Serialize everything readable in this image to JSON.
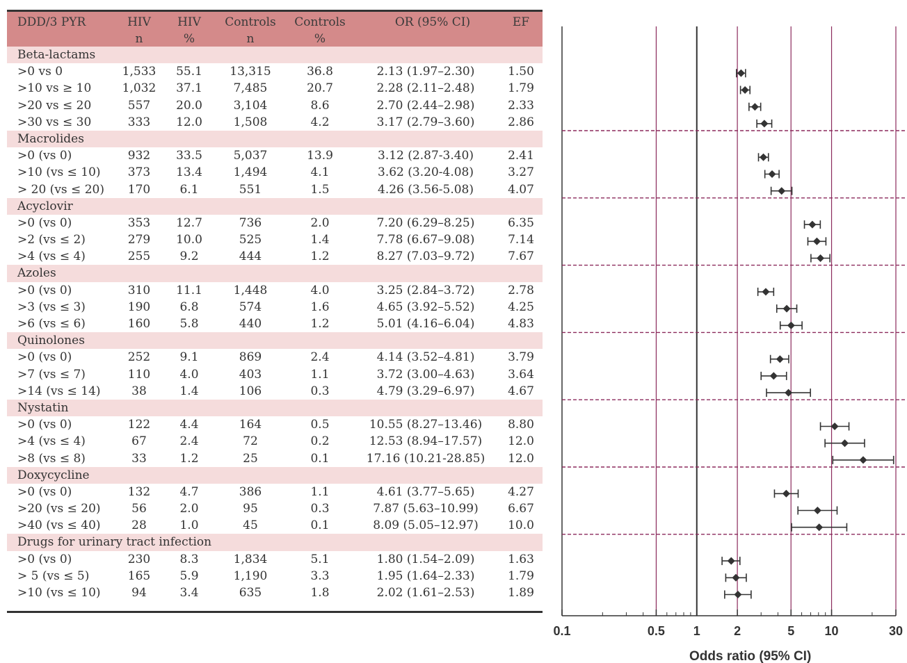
{
  "table": {
    "headers": [
      {
        "line1": "DDD/3 PYR",
        "line2": ""
      },
      {
        "line1": "HIV",
        "line2": "n"
      },
      {
        "line1": "HIV",
        "line2": "%"
      },
      {
        "line1": "Controls",
        "line2": "n"
      },
      {
        "line1": "Controls",
        "line2": "%"
      },
      {
        "line1": "OR (95% CI)",
        "line2": ""
      },
      {
        "line1": "EF",
        "line2": ""
      }
    ],
    "groups": [
      {
        "name": "Beta-lactams",
        "rows": [
          [
            ">0 vs 0",
            "1,533",
            "55.1",
            "13,315",
            "36.8",
            "2.13 (1.97–2.30)",
            "1.50"
          ],
          [
            ">10 vs ≥ 10",
            "1,032",
            "37.1",
            "7,485",
            "20.7",
            "2.28 (2.11–2.48)",
            "1.79"
          ],
          [
            ">20 vs ≤ 20",
            "557",
            "20.0",
            "3,104",
            "8.6",
            "2.70 (2.44–2.98)",
            "2.33"
          ],
          [
            ">30 vs ≤ 30",
            "333",
            "12.0",
            "1,508",
            "4.2",
            "3.17 (2.79–3.60)",
            "2.86"
          ]
        ]
      },
      {
        "name": "Macrolides",
        "rows": [
          [
            ">0 (vs 0)",
            "932",
            "33.5",
            "5,037",
            "13.9",
            "3.12 (2.87-3.40)",
            "2.41"
          ],
          [
            ">10 (vs ≤ 10)",
            "373",
            "13.4",
            "1,494",
            "4.1",
            "3.62 (3.20-4.08)",
            "3.27"
          ],
          [
            "> 20 (vs ≤ 20)",
            "170",
            "6.1",
            "551",
            "1.5",
            "4.26 (3.56-5.08)",
            "4.07"
          ]
        ]
      },
      {
        "name": "Acyclovir",
        "rows": [
          [
            ">0 (vs 0)",
            "353",
            "12.7",
            "736",
            "2.0",
            "7.20 (6.29–8.25)",
            "6.35"
          ],
          [
            ">2 (vs ≤ 2)",
            "279",
            "10.0",
            "525",
            "1.4",
            "7.78 (6.67–9.08)",
            "7.14"
          ],
          [
            ">4 (vs ≤ 4)",
            "255",
            "9.2",
            "444",
            "1.2",
            "8.27 (7.03–9.72)",
            "7.67"
          ]
        ]
      },
      {
        "name": "Azoles",
        "rows": [
          [
            ">0 (vs 0)",
            "310",
            "11.1",
            "1,448",
            "4.0",
            "3.25 (2.84–3.72)",
            "2.78"
          ],
          [
            ">3 (vs ≤ 3)",
            "190",
            "6.8",
            "574",
            "1.6",
            "4.65 (3.92–5.52)",
            "4.25"
          ],
          [
            ">6 (vs ≤ 6)",
            "160",
            "5.8",
            "440",
            "1.2",
            "5.01 (4.16–6.04)",
            "4.83"
          ]
        ]
      },
      {
        "name": "Quinolones",
        "rows": [
          [
            ">0 (vs 0)",
            "252",
            "9.1",
            "869",
            "2.4",
            "4.14 (3.52–4.81)",
            "3.79"
          ],
          [
            ">7 (vs ≤ 7)",
            "110",
            "4.0",
            "403",
            "1.1",
            "3.72 (3.00–4.63)",
            "3.64"
          ],
          [
            ">14 (vs ≤ 14)",
            "38",
            "1.4",
            "106",
            "0.3",
            "4.79 (3.29–6.97)",
            "4.67"
          ]
        ]
      },
      {
        "name": "Nystatin",
        "rows": [
          [
            ">0 (vs 0)",
            "122",
            "4.4",
            "164",
            "0.5",
            "10.55 (8.27–13.46)",
            "8.80"
          ],
          [
            ">4 (vs ≤ 4)",
            "67",
            "2.4",
            "72",
            "0.2",
            "12.53 (8.94–17.57)",
            "12.0"
          ],
          [
            ">8 (vs ≤ 8)",
            "33",
            "1.2",
            "25",
            "0.1",
            "17.16 (10.21-28.85)",
            "12.0"
          ]
        ]
      },
      {
        "name": "Doxycycline",
        "rows": [
          [
            ">0 (vs 0)",
            "132",
            "4.7",
            "386",
            "1.1",
            "4.61 (3.77–5.65)",
            "4.27"
          ],
          [
            ">20 (vs ≤ 20)",
            "56",
            "2.0",
            "95",
            "0.3",
            "7.87 (5.63–10.99)",
            "6.67"
          ],
          [
            ">40 (vs ≤ 40)",
            "28",
            "1.0",
            "45",
            "0.1",
            "8.09 (5.05–12.97)",
            "10.0"
          ]
        ]
      },
      {
        "name": "Drugs for urinary tract infection",
        "rows": [
          [
            ">0 (vs 0)",
            "230",
            "8.3",
            "1,834",
            "5.1",
            "1.80 (1.54–2.09)",
            "1.63"
          ],
          [
            "> 5 (vs ≤ 5)",
            "165",
            "5.9",
            "1,190",
            "3.3",
            "1.95 (1.64–2.33)",
            "1.79"
          ],
          [
            ">10 (vs ≤ 10)",
            "94",
            "3.4",
            "635",
            "1.8",
            "2.02 (1.61–2.53)",
            "1.89"
          ]
        ]
      }
    ]
  },
  "chart_data": {
    "type": "scatter",
    "xscale": "log",
    "xlim": [
      0.1,
      30
    ],
    "xticks": [
      0.1,
      0.5,
      1,
      2,
      5,
      10,
      30
    ],
    "xtick_labels": [
      "0.1",
      "0.5",
      "1",
      "2",
      "5",
      "10",
      "30"
    ],
    "xlabel": "Odds ratio (95% CI)",
    "reference_line": 1,
    "vertical_gridlines": [
      0.5,
      2,
      5,
      10,
      30
    ],
    "group_separators": "dashed",
    "marker": "diamond",
    "colors": {
      "marker": "#333333",
      "gridline": "#8b2a5c",
      "reference": "#333333",
      "separator": "#8b2a5c"
    },
    "groups": [
      {
        "points": [
          {
            "or": 2.13,
            "lo": 1.97,
            "hi": 2.3
          },
          {
            "or": 2.28,
            "lo": 2.11,
            "hi": 2.48
          },
          {
            "or": 2.7,
            "lo": 2.44,
            "hi": 2.98
          },
          {
            "or": 3.17,
            "lo": 2.79,
            "hi": 3.6
          }
        ]
      },
      {
        "points": [
          {
            "or": 3.12,
            "lo": 2.87,
            "hi": 3.4
          },
          {
            "or": 3.62,
            "lo": 3.2,
            "hi": 4.08
          },
          {
            "or": 4.26,
            "lo": 3.56,
            "hi": 5.08
          }
        ]
      },
      {
        "points": [
          {
            "or": 7.2,
            "lo": 6.29,
            "hi": 8.25
          },
          {
            "or": 7.78,
            "lo": 6.67,
            "hi": 9.08
          },
          {
            "or": 8.27,
            "lo": 7.03,
            "hi": 9.72
          }
        ]
      },
      {
        "points": [
          {
            "or": 3.25,
            "lo": 2.84,
            "hi": 3.72
          },
          {
            "or": 4.65,
            "lo": 3.92,
            "hi": 5.52
          },
          {
            "or": 5.01,
            "lo": 4.16,
            "hi": 6.04
          }
        ]
      },
      {
        "points": [
          {
            "or": 4.14,
            "lo": 3.52,
            "hi": 4.81
          },
          {
            "or": 3.72,
            "lo": 3.0,
            "hi": 4.63
          },
          {
            "or": 4.79,
            "lo": 3.29,
            "hi": 6.97
          }
        ]
      },
      {
        "points": [
          {
            "or": 10.55,
            "lo": 8.27,
            "hi": 13.46
          },
          {
            "or": 12.53,
            "lo": 8.94,
            "hi": 17.57
          },
          {
            "or": 17.16,
            "lo": 10.21,
            "hi": 28.85
          }
        ]
      },
      {
        "points": [
          {
            "or": 4.61,
            "lo": 3.77,
            "hi": 5.65
          },
          {
            "or": 7.87,
            "lo": 5.63,
            "hi": 10.99
          },
          {
            "or": 8.09,
            "lo": 5.05,
            "hi": 12.97
          }
        ]
      },
      {
        "points": [
          {
            "or": 1.8,
            "lo": 1.54,
            "hi": 2.09
          },
          {
            "or": 1.95,
            "lo": 1.64,
            "hi": 2.33
          },
          {
            "or": 2.02,
            "lo": 1.61,
            "hi": 2.53
          }
        ]
      }
    ]
  }
}
